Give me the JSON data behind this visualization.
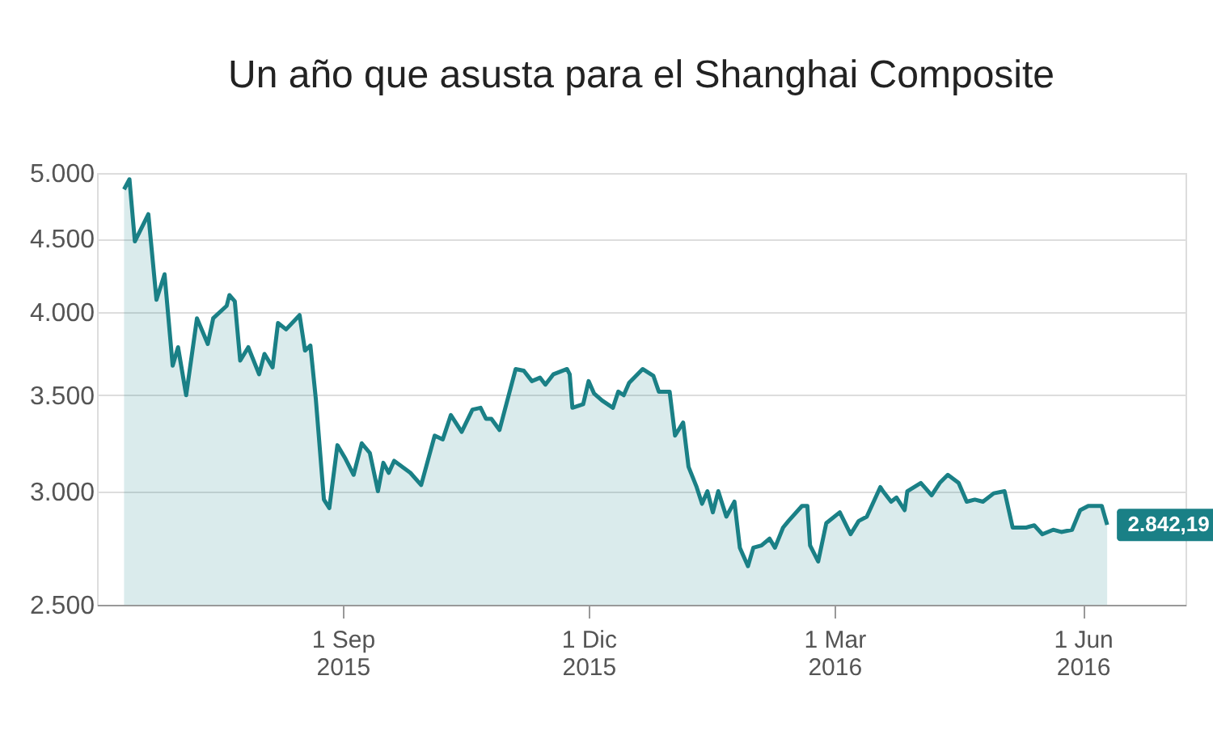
{
  "chart_data": {
    "type": "area",
    "title": "Un año que asusta para el Shanghai Composite",
    "x": [
      "2015-06-12",
      "2015-06-14",
      "2015-06-16",
      "2015-06-21",
      "2015-06-24",
      "2015-06-27",
      "2015-06-30",
      "2015-07-02",
      "2015-07-05",
      "2015-07-09",
      "2015-07-13",
      "2015-07-15",
      "2015-07-20",
      "2015-07-21",
      "2015-07-23",
      "2015-07-25",
      "2015-07-28",
      "2015-08-01",
      "2015-08-03",
      "2015-08-06",
      "2015-08-08",
      "2015-08-11",
      "2015-08-16",
      "2015-08-18",
      "2015-08-20",
      "2015-08-22",
      "2015-08-25",
      "2015-08-27",
      "2015-08-30",
      "2015-09-02",
      "2015-09-05",
      "2015-09-08",
      "2015-09-11",
      "2015-09-14",
      "2015-09-16",
      "2015-09-18",
      "2015-09-20",
      "2015-09-26",
      "2015-09-30",
      "2015-10-05",
      "2015-10-08",
      "2015-10-11",
      "2015-10-15",
      "2015-10-19",
      "2015-10-22",
      "2015-10-24",
      "2015-10-26",
      "2015-10-29",
      "2015-11-04",
      "2015-11-07",
      "2015-11-10",
      "2015-11-13",
      "2015-11-15",
      "2015-11-18",
      "2015-11-23",
      "2015-11-24",
      "2015-11-25",
      "2015-11-29",
      "2015-12-01",
      "2015-12-03",
      "2015-12-06",
      "2015-12-10",
      "2015-12-12",
      "2015-12-14",
      "2015-12-16",
      "2015-12-21",
      "2015-12-25",
      "2015-12-27",
      "2015-12-31",
      "2016-01-02",
      "2016-01-05",
      "2016-01-07",
      "2016-01-10",
      "2016-01-12",
      "2016-01-14",
      "2016-01-16",
      "2016-01-18",
      "2016-01-21",
      "2016-01-24",
      "2016-01-26",
      "2016-01-29",
      "2016-01-31",
      "2016-02-03",
      "2016-02-06",
      "2016-02-08",
      "2016-02-11",
      "2016-02-13",
      "2016-02-18",
      "2016-02-20",
      "2016-02-21",
      "2016-02-24",
      "2016-02-27",
      "2016-03-03",
      "2016-03-07",
      "2016-03-10",
      "2016-03-13",
      "2016-03-18",
      "2016-03-19",
      "2016-03-22",
      "2016-03-24",
      "2016-03-27",
      "2016-03-28",
      "2016-04-02",
      "2016-04-04",
      "2016-04-06",
      "2016-04-09",
      "2016-04-12",
      "2016-04-16",
      "2016-04-19",
      "2016-04-22",
      "2016-04-25",
      "2016-04-29",
      "2016-05-03",
      "2016-05-06",
      "2016-05-11",
      "2016-05-14",
      "2016-05-17",
      "2016-05-21",
      "2016-05-24",
      "2016-05-28",
      "2016-05-31",
      "2016-06-03",
      "2016-06-08",
      "2016-06-10"
    ],
    "series": [
      {
        "color": "#1a8086",
        "values": [
          4870,
          4950,
          4480,
          4680,
          4080,
          4250,
          3670,
          3780,
          3500,
          3960,
          3800,
          3960,
          4040,
          4110,
          4070,
          3700,
          3780,
          3620,
          3740,
          3660,
          3930,
          3890,
          3980,
          3760,
          3790,
          3480,
          2960,
          2920,
          3230,
          3160,
          3080,
          3240,
          3190,
          3000,
          3140,
          3090,
          3150,
          3090,
          3030,
          3280,
          3260,
          3390,
          3300,
          3420,
          3430,
          3370,
          3370,
          3310,
          3650,
          3640,
          3580,
          3600,
          3560,
          3620,
          3650,
          3620,
          3430,
          3450,
          3580,
          3510,
          3470,
          3430,
          3520,
          3500,
          3570,
          3650,
          3610,
          3520,
          3520,
          3280,
          3350,
          3120,
          3020,
          2940,
          3000,
          2900,
          3000,
          2880,
          2950,
          2740,
          2660,
          2740,
          2750,
          2780,
          2740,
          2830,
          2860,
          2930,
          2930,
          2750,
          2680,
          2850,
          2900,
          2800,
          2860,
          2880,
          3020,
          3000,
          2950,
          2970,
          2910,
          3000,
          3040,
          3010,
          2980,
          3040,
          3080,
          3040,
          2950,
          2960,
          2950,
          2990,
          3000,
          2830,
          2830,
          2840,
          2800,
          2820,
          2810,
          2820,
          2910,
          2930,
          2930,
          2842.19
        ]
      }
    ],
    "xlim": [
      "2015-06-02",
      "2016-07-09"
    ],
    "xticks": [
      {
        "value": "2015-09-01",
        "label": "1 Sep 2015"
      },
      {
        "value": "2015-12-01",
        "label": "1 Dic 2015"
      },
      {
        "value": "2016-03-01",
        "label": "1 Mar 2016"
      },
      {
        "value": "2016-06-01",
        "label": "1 Jun 2016"
      }
    ],
    "ylim": [
      2500,
      5000
    ],
    "log": true,
    "yticks": [
      {
        "value": 2500,
        "label": "2.500"
      },
      {
        "value": 3000,
        "label": "3.000"
      },
      {
        "value": 3500,
        "label": "3.500"
      },
      {
        "value": 4000,
        "label": "4.000"
      },
      {
        "value": 4500,
        "label": "4.500"
      },
      {
        "value": 5000,
        "label": "5.000"
      }
    ],
    "grid": "y",
    "annotations": [
      {
        "text": "2.842,19",
        "x": "2016-06-10",
        "y": 2842.19
      }
    ]
  }
}
